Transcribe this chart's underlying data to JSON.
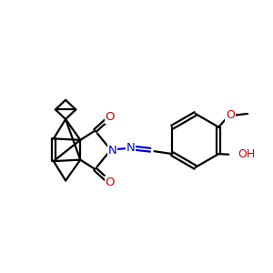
{
  "bg": "#ffffff",
  "bc": "#000000",
  "blue": "#0000dd",
  "red": "#cc0000",
  "lw": 1.6,
  "figsize": [
    3.0,
    3.0
  ],
  "dpi": 100,
  "xlim": [
    0,
    10
  ],
  "ylim": [
    0,
    10
  ]
}
